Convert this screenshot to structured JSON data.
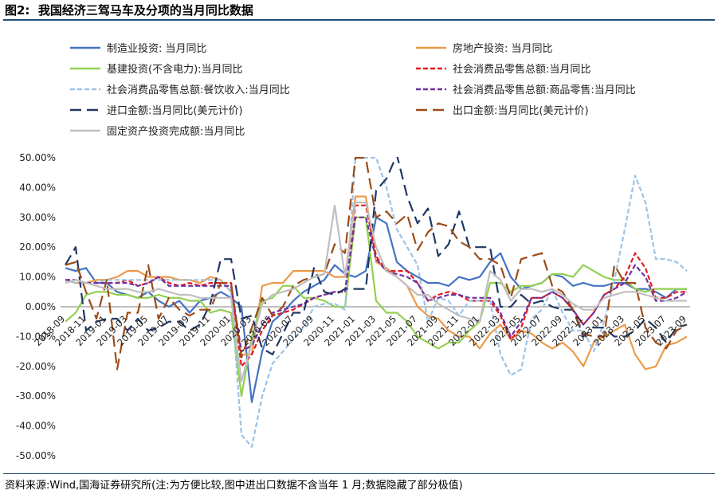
{
  "figure": {
    "title": "图2:  我国经济三驾马车及分项的当月同比数据",
    "source": "资料来源:Wind,国海证券研究所(注:为方便比较,图中进出口数据不含当年 1 月;数据隐藏了部分极值)"
  },
  "chart_data": {
    "type": "line",
    "yticks": [
      "50.00%",
      "40.00%",
      "30.00%",
      "20.00%",
      "10.00%",
      "0.00%",
      "-10.00%",
      "-20.00%",
      "-30.00%",
      "-40.00%",
      "-50.00%"
    ],
    "ylim": [
      -50,
      50
    ],
    "xticks": [
      "2018-09",
      "2018-11",
      "2019-01",
      "2019-03",
      "2019-05",
      "2019-07",
      "2019-09",
      "2019-11",
      "2020-01",
      "2020-03",
      "2020-05",
      "2020-07",
      "2020-09",
      "2020-11",
      "2021-01",
      "2021-03",
      "2021-05",
      "2021-07",
      "2021-09",
      "2021-11",
      "2022-01",
      "2022-03",
      "2022-05",
      "2022-07",
      "2022-09",
      "2022-11",
      "2023-01",
      "2023-03",
      "2023-05",
      "2023-07",
      "2023-09"
    ],
    "x": [
      "2018-09",
      "2018-10",
      "2018-11",
      "2018-12",
      "2019-01",
      "2019-02",
      "2019-03",
      "2019-04",
      "2019-05",
      "2019-06",
      "2019-07",
      "2019-08",
      "2019-09",
      "2019-10",
      "2019-11",
      "2019-12",
      "2020-01",
      "2020-02",
      "2020-03",
      "2020-04",
      "2020-05",
      "2020-06",
      "2020-07",
      "2020-08",
      "2020-09",
      "2020-10",
      "2020-11",
      "2020-12",
      "2021-01",
      "2021-02",
      "2021-03",
      "2021-04",
      "2021-05",
      "2021-06",
      "2021-07",
      "2021-08",
      "2021-09",
      "2021-10",
      "2021-11",
      "2021-12",
      "2022-01",
      "2022-02",
      "2022-03",
      "2022-04",
      "2022-05",
      "2022-06",
      "2022-07",
      "2022-08",
      "2022-09",
      "2022-10",
      "2022-11",
      "2022-12",
      "2023-01",
      "2023-02",
      "2023-03",
      "2023-04",
      "2023-05",
      "2023-06",
      "2023-07",
      "2023-08",
      "2023-09"
    ],
    "series": [
      {
        "name": "制造业投资: 当月同比",
        "color": "#4472C4",
        "dash": "solid",
        "values": [
          13,
          12,
          13,
          8,
          8,
          5,
          4,
          3,
          5,
          2,
          0,
          2,
          -2,
          2,
          3,
          5,
          3,
          0,
          -32,
          -15,
          -5,
          -2,
          2,
          5,
          7,
          9,
          14,
          11,
          10,
          12,
          30,
          28,
          15,
          12,
          10,
          8,
          8,
          7,
          10,
          9,
          10,
          15,
          18,
          10,
          6,
          7,
          8,
          11,
          10,
          7,
          8,
          7,
          7,
          8,
          8,
          6,
          6,
          5,
          3,
          6,
          6
        ]
      },
      {
        "name": "房地产投资: 当月同比",
        "color": "#ED9A48",
        "dash": "solid",
        "values": [
          9,
          8,
          8,
          9,
          9,
          10,
          12,
          12,
          10,
          10,
          10,
          9,
          9,
          8,
          10,
          9,
          5,
          -16,
          -16,
          7,
          8,
          8,
          12,
          12,
          12,
          12,
          10,
          10,
          37,
          37,
          15,
          13,
          10,
          7,
          0,
          -3,
          -4,
          -8,
          -10,
          -10,
          -14,
          -9,
          -6,
          -11,
          -8,
          -9,
          -12,
          -14,
          -12,
          -15,
          -20,
          -12,
          -10,
          -8,
          -6,
          -16,
          -21,
          -20,
          -13,
          -12,
          -10
        ]
      },
      {
        "name": "基建投资(不含电力):当月同比",
        "color": "#92D050",
        "dash": "solid",
        "values": [
          -5,
          -2,
          4,
          5,
          5,
          4,
          4,
          3,
          3,
          4,
          3,
          3,
          2,
          2,
          -2,
          -1,
          -2,
          -30,
          -10,
          2,
          3,
          7,
          7,
          3,
          3,
          2,
          0,
          0,
          30,
          30,
          2,
          -2,
          -2,
          -5,
          -10,
          -12,
          -14,
          -12,
          -12,
          -8,
          -5,
          8,
          8,
          5,
          7,
          7,
          8,
          11,
          11,
          10,
          14,
          12,
          10,
          9,
          9,
          6,
          5,
          6,
          6,
          6,
          6
        ]
      },
      {
        "name": "社会消费品零售总额:当月同比",
        "color": "#E41A1C",
        "dash": "dash",
        "values": [
          9,
          9,
          8,
          8,
          8,
          8,
          9,
          7,
          8,
          10,
          8,
          7,
          8,
          7,
          8,
          8,
          8,
          -20,
          -16,
          -8,
          -3,
          -2,
          -1,
          1,
          3,
          4,
          5,
          5,
          34,
          34,
          17,
          12,
          12,
          12,
          8,
          2,
          4,
          5,
          4,
          2,
          2,
          2,
          -3,
          -11,
          -7,
          3,
          3,
          5,
          3,
          -1,
          -6,
          -2,
          4,
          6,
          10,
          18,
          13,
          3,
          3,
          5,
          5
        ]
      },
      {
        "name": "社会消费品零售总额:餐饮收入:当月同比",
        "color": "#9DC3E6",
        "dash": "dash",
        "values": [
          9,
          8,
          8,
          8,
          9,
          9,
          9,
          9,
          9,
          9,
          9,
          9,
          9,
          9,
          9,
          9,
          5,
          -43,
          -47,
          -30,
          -19,
          -15,
          -11,
          -7,
          0,
          1,
          1,
          -1,
          50,
          50,
          50,
          40,
          26,
          20,
          14,
          -5,
          3,
          2,
          -3,
          2,
          2,
          2,
          -16,
          -23,
          -21,
          -4,
          -1,
          6,
          -2,
          -8,
          -8,
          -15,
          -5,
          9,
          26,
          44,
          35,
          16,
          16,
          15,
          12
        ]
      },
      {
        "name": "社会消费品零售总额:商品零售:当月同比",
        "color": "#7030A0",
        "dash": "dash",
        "values": [
          9,
          9,
          8,
          8,
          8,
          8,
          8,
          7,
          8,
          10,
          7,
          7,
          7,
          7,
          7,
          7,
          7,
          -15,
          -13,
          -6,
          -2,
          -1,
          0,
          1,
          3,
          4,
          5,
          5,
          30,
          30,
          16,
          12,
          11,
          10,
          8,
          2,
          3,
          4,
          4,
          3,
          3,
          3,
          -2,
          -10,
          -5,
          3,
          3,
          5,
          3,
          -1,
          -6,
          -2,
          4,
          6,
          8,
          14,
          10,
          2,
          2,
          3,
          5
        ]
      },
      {
        "name": "进口金额:当月同比(美元计价)",
        "color": "#1F3864",
        "dash": "longdash",
        "values": [
          14,
          20,
          -8,
          -5,
          -4,
          -4,
          -8,
          -4,
          -8,
          -7,
          -5,
          -5,
          -8,
          -6,
          1,
          16,
          16,
          -4,
          -3,
          -14,
          -16,
          -9,
          -2,
          -2,
          13,
          5,
          4,
          6,
          6,
          6,
          39,
          43,
          51,
          37,
          28,
          33,
          17,
          21,
          32,
          20,
          20,
          20,
          0,
          0,
          4,
          1,
          2,
          0,
          -1,
          -1,
          -10,
          -7,
          -7,
          -10,
          -10,
          -8,
          -4,
          -7,
          -12,
          -7,
          -6
        ]
      },
      {
        "name": "出口金额:当月同比(美元计价)",
        "color": "#9C4B18",
        "dash": "longdash",
        "values": [
          14,
          15,
          5,
          -4,
          9,
          -21,
          -2,
          -2,
          14,
          -4,
          3,
          -1,
          -3,
          -1,
          -1,
          8,
          8,
          -17,
          -7,
          3,
          -3,
          0,
          7,
          9,
          10,
          11,
          21,
          18,
          50,
          50,
          30,
          32,
          28,
          31,
          19,
          25,
          28,
          27,
          22,
          20,
          16,
          16,
          14,
          3,
          16,
          17,
          18,
          7,
          5,
          -1,
          -9,
          -10,
          -10,
          14,
          8,
          8,
          -7,
          -12,
          -14,
          -8,
          -6
        ]
      },
      {
        "name": "固定资产投资完成额:当月同比",
        "color": "#BFBFBF",
        "dash": "solid",
        "values": [
          8,
          9,
          8,
          7,
          6,
          6,
          6,
          5,
          5,
          6,
          5,
          4,
          4,
          3,
          3,
          3,
          3,
          -25,
          -12,
          1,
          4,
          5,
          6,
          8,
          10,
          11,
          34,
          10,
          35,
          35,
          20,
          12,
          10,
          7,
          4,
          4,
          1,
          -1,
          -3,
          -4,
          -5,
          12,
          9,
          2,
          6,
          6,
          5,
          6,
          4,
          1,
          -1,
          -1,
          3,
          4,
          5,
          5,
          4,
          3,
          2,
          2,
          2
        ]
      }
    ]
  }
}
